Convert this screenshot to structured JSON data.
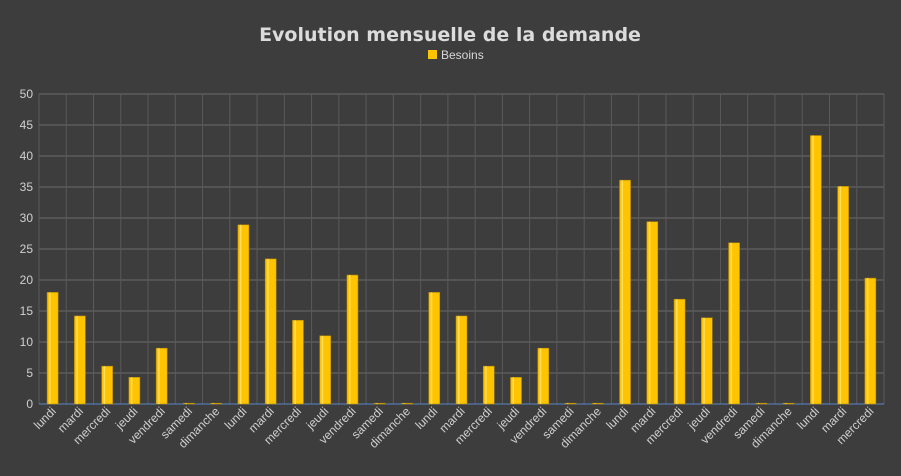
{
  "chart_data": {
    "type": "bar",
    "title": "Evolution mensuelle de la demande",
    "xlabel": "",
    "ylabel": "",
    "ylim": [
      0,
      50
    ],
    "yticks": [
      0,
      5,
      10,
      15,
      20,
      25,
      30,
      35,
      40,
      45,
      50
    ],
    "grid": true,
    "legend_position": "top-center",
    "bar_color": "#ffc400",
    "categories": [
      "lundi",
      "mardi",
      "mercredi",
      "jeudi",
      "vendredi",
      "samedi",
      "dimanche",
      "lundi",
      "mardi",
      "mercredi",
      "jeudi",
      "vendredi",
      "samedi",
      "dimanche",
      "lundi",
      "mardi",
      "mercredi",
      "jeudi",
      "vendredi",
      "samedi",
      "dimanche",
      "lundi",
      "mardi",
      "mercredi",
      "jeudi",
      "vendredi",
      "samedi",
      "dimanche",
      "lundi",
      "mardi",
      "mercredi"
    ],
    "series": [
      {
        "name": "Besoins",
        "values": [
          18,
          14.2,
          6.1,
          4.3,
          9,
          0.1,
          0.1,
          28.9,
          23.4,
          13.5,
          11,
          20.8,
          0.1,
          0.1,
          18,
          14.2,
          6.1,
          4.3,
          9,
          0.1,
          0.1,
          36.1,
          29.4,
          16.9,
          13.9,
          26,
          0.1,
          0.1,
          43.3,
          35.1,
          20.3
        ]
      }
    ]
  }
}
